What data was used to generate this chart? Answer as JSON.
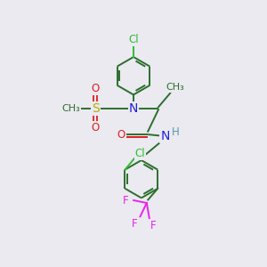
{
  "bg_color": "#eaeaf0",
  "bond_color": "#2d6e2d",
  "atom_colors": {
    "C": "#2d6e2d",
    "N": "#2020dd",
    "O": "#dd2020",
    "S": "#bbaa00",
    "Cl": "#33bb33",
    "F": "#ee22ee",
    "H": "#5599aa"
  },
  "lw": 1.4,
  "ring_r": 0.72
}
